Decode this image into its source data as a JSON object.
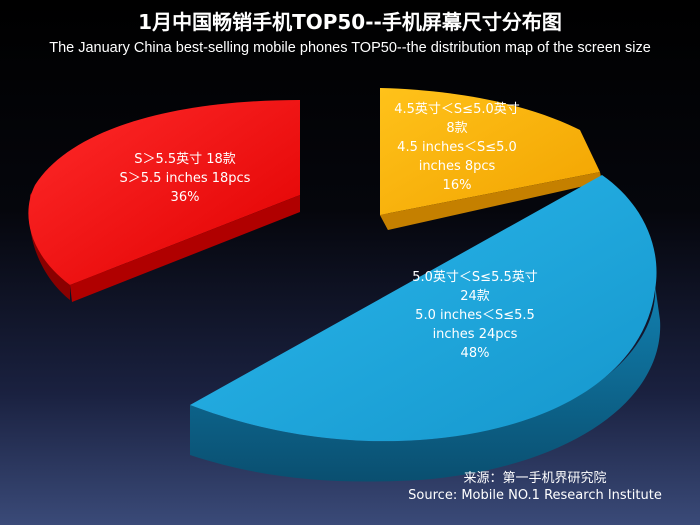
{
  "title": "1月中国畅销手机TOP50--手机屏幕尺寸分布图",
  "subtitle": "The January China best-selling mobile phones TOP50--the distribution map of the screen size",
  "chart_data": {
    "type": "pie",
    "style": "3d-exploded",
    "slices": [
      {
        "label_zh": "S＞5.5英寸 18款",
        "label_en": "S＞5.5 inches 18pcs",
        "count": 18,
        "percent_label": "36%",
        "percent": 36,
        "color": "#ff0000"
      },
      {
        "label_zh": "4.5英寸＜S≤5.0英寸",
        "count_zh": "8款",
        "label_en_1": "4.5 inches＜S≤5.0",
        "label_en_2": "inches 8pcs",
        "count": 8,
        "percent_label": "16%",
        "percent": 16,
        "color": "#ffb000"
      },
      {
        "label_zh": "5.0英寸＜S≤5.5英寸",
        "count_zh": "24款",
        "label_en_1": "5.0 inches＜S≤5.5",
        "label_en_2": "inches 24pcs",
        "count": 24,
        "percent_label": "48%",
        "percent": 48,
        "color": "#1aa6dc"
      }
    ]
  },
  "source_zh": "来源：第一手机界研究院",
  "source_en": "Source: Mobile NO.1 Research Institute"
}
